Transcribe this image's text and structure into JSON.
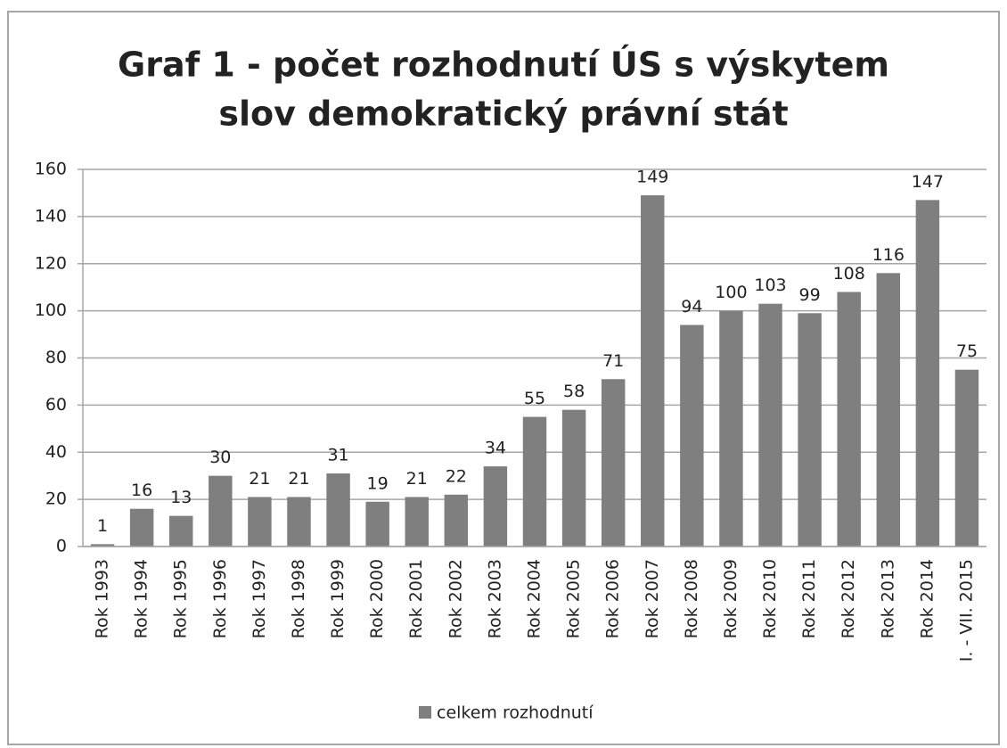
{
  "chart_data": {
    "type": "bar",
    "title": [
      "Graf 1 - počet rozhodnutí ÚS s výskytem",
      "slov demokratický právní stát"
    ],
    "categories": [
      "Rok 1993",
      "Rok 1994",
      "Rok 1995",
      "Rok 1996",
      "Rok 1997",
      "Rok 1998",
      "Rok 1999",
      "Rok 2000",
      "Rok 2001",
      "Rok 2002",
      "Rok 2003",
      "Rok 2004",
      "Rok 2005",
      "Rok 2006",
      "Rok 2007",
      "Rok 2008",
      "Rok 2009",
      "Rok 2010",
      "Rok 2011",
      "Rok 2012",
      "Rok 2013",
      "Rok 2014",
      "I. - VII. 2015"
    ],
    "series": [
      {
        "name": "celkem rozhodnutí",
        "color": "#7f7f7f",
        "values": [
          1,
          16,
          13,
          30,
          21,
          21,
          31,
          19,
          21,
          22,
          34,
          55,
          58,
          71,
          149,
          94,
          100,
          103,
          99,
          108,
          116,
          147,
          75
        ]
      }
    ],
    "ylim": [
      0,
      160
    ],
    "yticks": [
      0,
      20,
      40,
      60,
      80,
      100,
      120,
      140,
      160
    ],
    "grid": true,
    "legend": "bottom"
  }
}
